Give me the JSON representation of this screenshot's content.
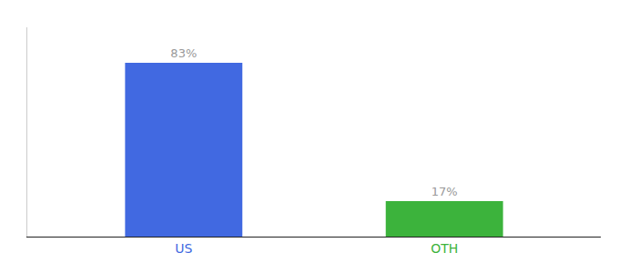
{
  "chart_data": {
    "type": "bar",
    "categories": [
      "US",
      "OTH"
    ],
    "values": [
      83,
      17
    ],
    "colors": [
      "#4169E1",
      "#3CB33C"
    ],
    "data_labels": true,
    "value_labels": [
      "83%",
      "17%"
    ],
    "ylim": [
      0,
      100
    ],
    "yticks": [],
    "tick_labels": "x",
    "grid": false
  }
}
